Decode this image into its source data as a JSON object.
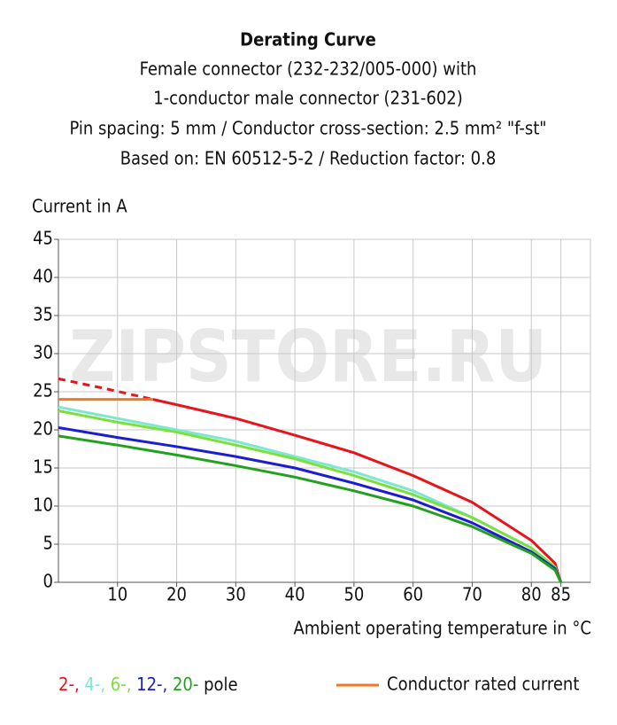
{
  "chart_data": {
    "type": "line",
    "title": "Derating Curve",
    "subtitle": [
      "Female connector (232-232/005-000) with",
      "1-conductor male connector (231-602)",
      "Pin spacing: 5 mm / Conductor cross-section: 2.5 mm² \"f-st\"",
      "Based on: EN 60512-5-2 / Reduction factor: 0.8"
    ],
    "y_label": "Current in A",
    "x_label": "Ambient operating temperature in °C",
    "watermark": "ZIPSTORE.RU",
    "xlim": [
      0,
      90
    ],
    "ylim": [
      0,
      45
    ],
    "xticks": [
      10,
      20,
      30,
      40,
      50,
      60,
      70,
      80,
      85
    ],
    "yticks": [
      0,
      5,
      10,
      15,
      20,
      25,
      30,
      35,
      40,
      45
    ],
    "grid": true,
    "legend_suffix": "pole",
    "series": [
      {
        "color": "#e8141c",
        "linestyle": "dashed",
        "x": [
          0,
          8,
          16
        ],
        "values": [
          26.7,
          25.4,
          24
        ]
      },
      {
        "name": "Conductor rated current",
        "color": "#f07820",
        "x": [
          0,
          16
        ],
        "values": [
          24,
          24
        ]
      },
      {
        "name": "2-,",
        "color": "#e8141c",
        "x": [
          16,
          20,
          30,
          40,
          50,
          60,
          70,
          80,
          84,
          85
        ],
        "values": [
          24,
          23.3,
          21.5,
          19.3,
          17,
          14,
          10.5,
          5.5,
          2.5,
          0
        ]
      },
      {
        "name": "4-,",
        "color": "#7de8d0",
        "x": [
          0,
          10,
          20,
          30,
          40,
          50,
          60,
          70,
          80,
          84,
          85
        ],
        "values": [
          23,
          21.5,
          20,
          18.5,
          16.5,
          14.5,
          12,
          8.5,
          4.5,
          2,
          0
        ]
      },
      {
        "name": "6-,",
        "color": "#7be03c",
        "x": [
          0,
          10,
          20,
          30,
          40,
          50,
          60,
          70,
          80,
          84,
          85
        ],
        "values": [
          22.5,
          21,
          19.7,
          18,
          16.2,
          14,
          11.5,
          8.5,
          4.5,
          2,
          0
        ]
      },
      {
        "name": "12-,",
        "color": "#1c1cd0",
        "x": [
          0,
          10,
          20,
          30,
          40,
          50,
          60,
          70,
          80,
          84,
          85
        ],
        "values": [
          20.3,
          19,
          17.8,
          16.5,
          15,
          13,
          10.8,
          7.8,
          4,
          1.8,
          0
        ]
      },
      {
        "name": "20-",
        "color": "#24a020",
        "x": [
          0,
          10,
          20,
          30,
          40,
          50,
          60,
          70,
          80,
          84,
          85
        ],
        "values": [
          19.2,
          18,
          16.7,
          15.3,
          13.8,
          12,
          10,
          7.3,
          3.8,
          1.6,
          0
        ]
      }
    ]
  }
}
